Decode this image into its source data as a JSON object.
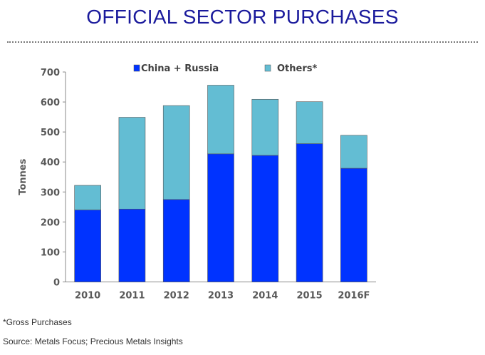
{
  "title": "OFFICIAL SECTOR PURCHASES",
  "chart_data": {
    "type": "bar",
    "stacked": true,
    "categories": [
      "2010",
      "2011",
      "2012",
      "2013",
      "2014",
      "2015",
      "2016F"
    ],
    "series": [
      {
        "name": "China + Russia",
        "color": "#0033ff",
        "values": [
          240,
          243,
          275,
          427,
          422,
          461,
          379
        ]
      },
      {
        "name": "Others*",
        "color": "#63bdd3",
        "values": [
          82,
          306,
          313,
          229,
          187,
          140,
          110
        ]
      }
    ],
    "ylabel": "Tonnes",
    "xlabel": "",
    "ylim": [
      0,
      700
    ],
    "yticks": [
      0,
      100,
      200,
      300,
      400,
      500,
      600,
      700
    ],
    "legend": "top",
    "grid": false
  },
  "footnote": "*Gross Purchases",
  "source": "Source: Metals Focus; Precious Metals Insights"
}
